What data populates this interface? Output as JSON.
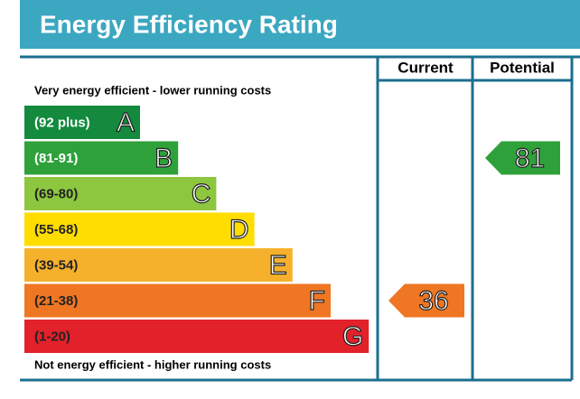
{
  "title": "Energy Efficiency Rating",
  "columns": [
    "Current",
    "Potential"
  ],
  "top_note": "Very energy efficient - lower running costs",
  "bottom_note": "Not energy efficient - higher running costs",
  "bands": [
    {
      "range": "(92 plus)",
      "letter": "A",
      "color": "#138a3e"
    },
    {
      "range": "(81-91)",
      "letter": "B",
      "color": "#2ea13b"
    },
    {
      "range": "(69-80)",
      "letter": "C",
      "color": "#8dc63f"
    },
    {
      "range": "(55-68)",
      "letter": "D",
      "color": "#ffdd00"
    },
    {
      "range": "(39-54)",
      "letter": "E",
      "color": "#f6b12c"
    },
    {
      "range": "(21-38)",
      "letter": "F",
      "color": "#ef7622"
    },
    {
      "range": "(1-20)",
      "letter": "G",
      "color": "#e2212b"
    }
  ],
  "current": 36,
  "potential": 81
}
